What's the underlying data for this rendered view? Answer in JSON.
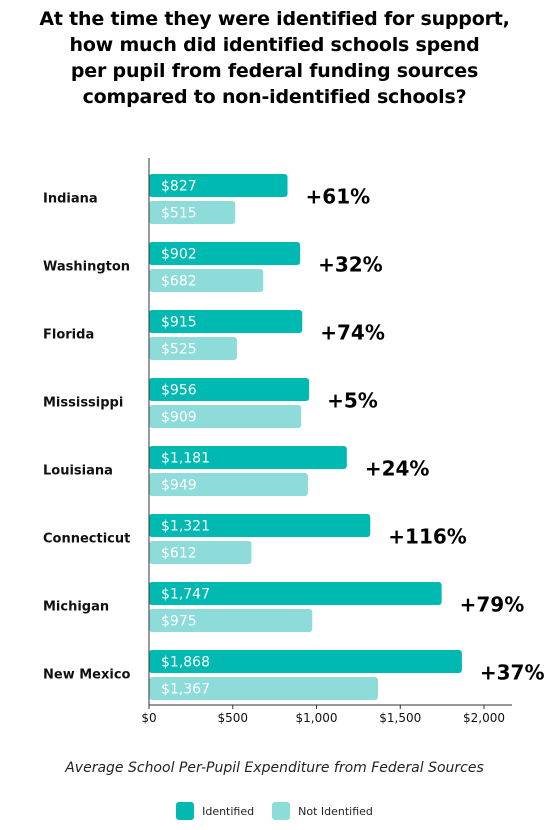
{
  "title_lines": [
    "At the time they were identified for support,",
    "how much did identified schools spend",
    "per pupil from federal funding sources",
    "compared to non-identified schools?"
  ],
  "colors": {
    "identified": "#00b9b0",
    "not_identified": "#8ddcd9"
  },
  "chart_data": {
    "type": "bar",
    "orientation": "horizontal",
    "title": "At the time they were identified for support, how much did identified schools spend per pupil from federal funding sources compared to non-identified schools?",
    "xlabel": "Average School Per-Pupil Expenditure from Federal Sources",
    "ylabel": "",
    "xlim": [
      0,
      2200
    ],
    "x_ticks": [
      0,
      500,
      1000,
      1500,
      2000
    ],
    "x_tick_labels": [
      "$0",
      "$500",
      "$1,000",
      "$1,500",
      "$2,000"
    ],
    "grid": false,
    "legend_position": "bottom",
    "categories": [
      "Indiana",
      "Washington",
      "Florida",
      "Mississippi",
      "Louisiana",
      "Connecticut",
      "Michigan",
      "New Mexico"
    ],
    "series": [
      {
        "name": "Identified",
        "values": [
          827,
          902,
          915,
          956,
          1181,
          1321,
          1747,
          1868
        ],
        "labels": [
          "$827",
          "$902",
          "$915",
          "$956",
          "$1,181",
          "$1,321",
          "$1,747",
          "$1,868"
        ]
      },
      {
        "name": "Not Identified",
        "values": [
          515,
          682,
          525,
          909,
          949,
          612,
          975,
          1367
        ],
        "labels": [
          "$515",
          "$682",
          "$525",
          "$909",
          "$949",
          "$612",
          "$975",
          "$1,367"
        ]
      }
    ],
    "annotations": [
      "+61%",
      "+32%",
      "+74%",
      "+5%",
      "+24%",
      "+116%",
      "+79%",
      "+37%"
    ]
  },
  "legend": {
    "identified_label": "Identified",
    "not_identified_label": "Not Identified"
  }
}
